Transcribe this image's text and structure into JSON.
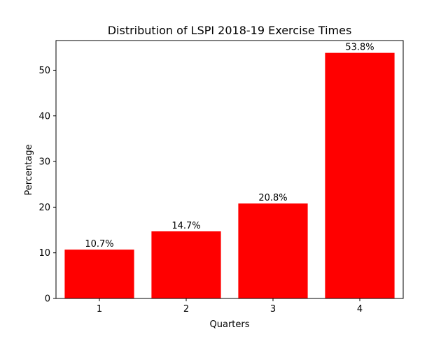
{
  "chart_data": {
    "type": "bar",
    "title": "Distribution of LSPI 2018-19 Exercise Times",
    "xlabel": "Quarters",
    "ylabel": "Percentage",
    "categories": [
      "1",
      "2",
      "3",
      "4"
    ],
    "values": [
      10.7,
      14.7,
      20.8,
      53.8
    ],
    "value_labels": [
      "10.7%",
      "14.7%",
      "20.8%",
      "53.8%"
    ],
    "yticks": [
      0,
      10,
      20,
      30,
      40,
      50
    ],
    "ylim": [
      0,
      56.5
    ],
    "bar_color": "#ff0000",
    "grid": false
  }
}
